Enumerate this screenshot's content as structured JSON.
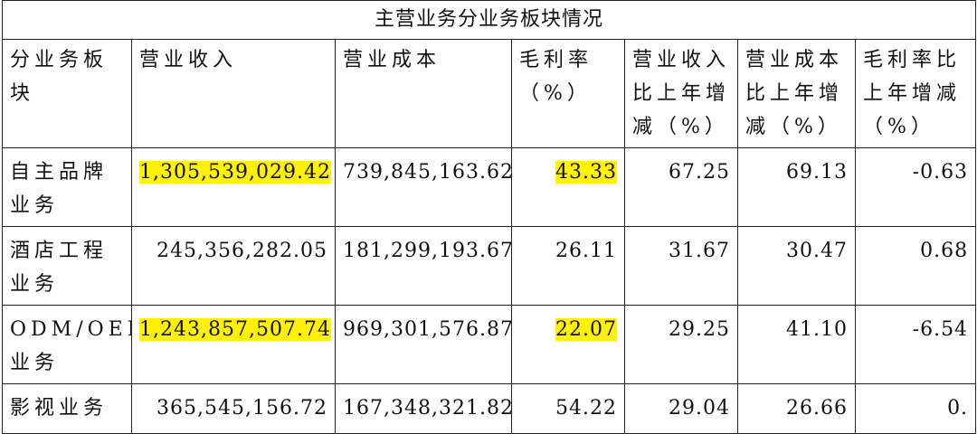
{
  "table": {
    "title": "主营业务分业务板块情况",
    "columns": [
      "分业务板块",
      "营业收入",
      "营业成本",
      "毛利率（%）",
      "营业收入比上年增减（%）",
      "营业成本比上年增减（%）",
      "毛利率比上年增减（%）"
    ],
    "rows": [
      [
        "自主品牌业务",
        "1,305,539,029.42",
        "739,845,163.62",
        "43.33",
        "67.25",
        "69.13",
        "-0.63"
      ],
      [
        "酒店工程业务",
        "245,356,282.05",
        "181,299,193.67",
        "26.11",
        "31.67",
        "30.47",
        "0.68"
      ],
      [
        "ODM/OEM业务",
        "1,243,857,507.74",
        "969,301,576.87",
        "22.07",
        "29.25",
        "41.10",
        "-6.54"
      ],
      [
        "影视业务",
        "365,545,156.72",
        "167,348,321.82",
        "54.22",
        "29.04",
        "26.66",
        "0."
      ]
    ]
  }
}
